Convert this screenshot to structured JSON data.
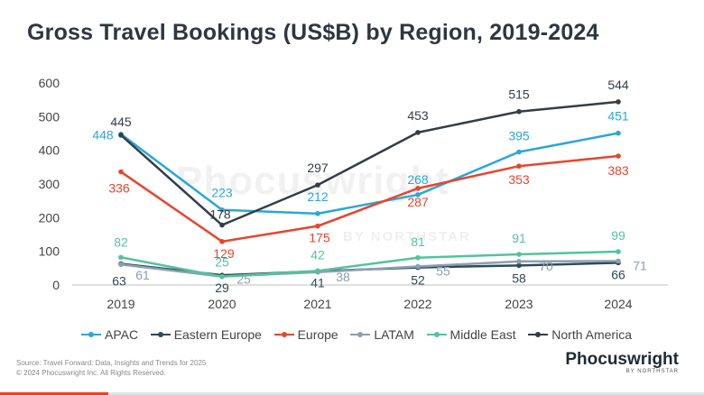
{
  "title": "Gross Travel Bookings (US$B) by Region, 2019-2024",
  "watermark": {
    "main": "Phocuswright",
    "sub": "BY NORTHSTAR"
  },
  "footer": {
    "source": "Source: Travel Forward: Data, Insights and Trends for 2025",
    "copyright": "© 2024 Phocuswright Inc. All Rights Reserved."
  },
  "logo": {
    "main": "Phocuswright",
    "sub": "BY NORTHSTAR"
  },
  "colors": {
    "accent_red": "#e8442d"
  },
  "chart_data": {
    "type": "line",
    "x": [
      "2019",
      "2020",
      "2021",
      "2022",
      "2023",
      "2024"
    ],
    "ylim": [
      0,
      600
    ],
    "yticks": [
      "0",
      "100",
      "200",
      "300",
      "400",
      "500",
      "600"
    ],
    "grid": false,
    "legend_position": "bottom",
    "series": [
      {
        "name": "APAC",
        "color": "#2aa7d9",
        "values": [
          448,
          223,
          212,
          268,
          395,
          451
        ],
        "labels": [
          "448",
          "223",
          "212",
          "268",
          "395",
          "451"
        ]
      },
      {
        "name": "Eastern Europe",
        "color": "#2e4a55",
        "values": [
          63,
          29,
          41,
          52,
          58,
          66
        ],
        "labels": [
          "63",
          "29",
          "41",
          "52",
          "58",
          "66"
        ]
      },
      {
        "name": "Europe",
        "color": "#e8442d",
        "values": [
          336,
          129,
          175,
          287,
          353,
          383
        ],
        "labels": [
          "336",
          "129",
          "175",
          "287",
          "353",
          "383"
        ]
      },
      {
        "name": "LATAM",
        "color": "#8b9fb2",
        "values": [
          61,
          25,
          38,
          55,
          70,
          71
        ],
        "labels": [
          "61",
          "25",
          "38",
          "55",
          "70",
          "71"
        ]
      },
      {
        "name": "Middle East",
        "color": "#52c49a",
        "values": [
          82,
          25,
          42,
          81,
          91,
          99
        ],
        "labels": [
          "82",
          "25",
          "42",
          "81",
          "91",
          "99"
        ]
      },
      {
        "name": "North America",
        "color": "#343d46",
        "values": [
          445,
          178,
          297,
          453,
          515,
          544
        ],
        "labels": [
          "445",
          "178",
          "297",
          "453",
          "515",
          "544"
        ]
      }
    ]
  }
}
